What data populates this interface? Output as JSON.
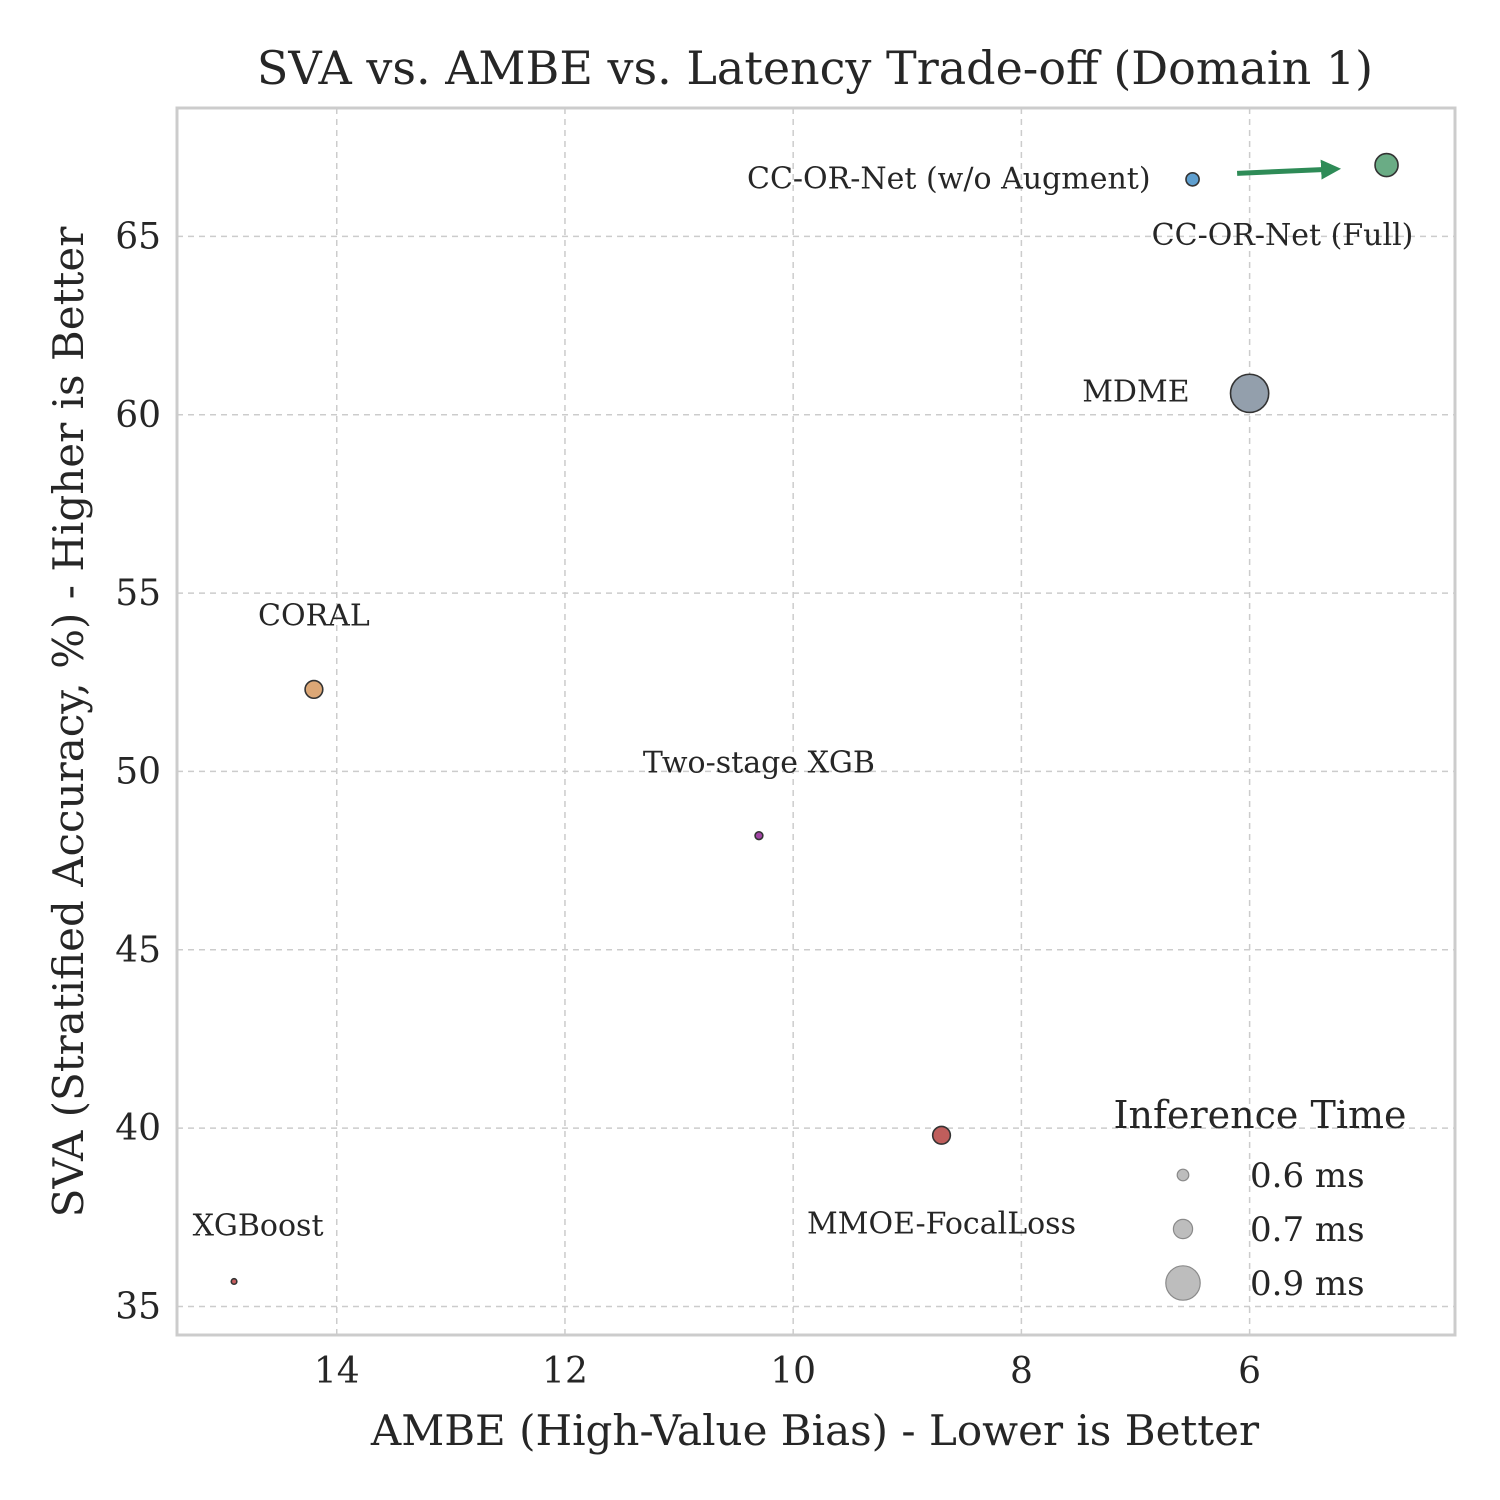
{
  "chart_data": {
    "type": "scatter",
    "title": "SVA vs. AMBE vs. Latency Trade-off (Domain 1)",
    "xlabel": "AMBE (High-Value Bias) - Lower is Better",
    "ylabel": "SVA (Stratified Accuracy, %) - Higher is Better",
    "x_inverted": true,
    "xlim": [
      15.4,
      4.2
    ],
    "ylim": [
      34.2,
      68.6
    ],
    "xticks": [
      14,
      12,
      10,
      8,
      6
    ],
    "yticks": [
      35,
      40,
      45,
      50,
      55,
      60,
      65
    ],
    "grid": true,
    "size_variable": "Inference Time (ms)",
    "points": [
      {
        "name": "CC-OR-Net (Full)",
        "ambe": 4.8,
        "sva": 67.0,
        "inference_ms": 0.75,
        "color": "#6aac85"
      },
      {
        "name": "CC-OR-Net (w/o Augment)",
        "ambe": 6.5,
        "sva": 66.6,
        "inference_ms": 0.62,
        "color": "#5f9fcf"
      },
      {
        "name": "MDME",
        "ambe": 6.0,
        "sva": 60.6,
        "inference_ms": 0.95,
        "color": "#939fac"
      },
      {
        "name": "CORAL",
        "ambe": 14.2,
        "sva": 52.3,
        "inference_ms": 0.68,
        "color": "#dca776"
      },
      {
        "name": "Two-stage XGB",
        "ambe": 10.3,
        "sva": 48.2,
        "inference_ms": 0.55,
        "color": "#a244a5"
      },
      {
        "name": "MMOE-FocalLoss",
        "ambe": 8.7,
        "sva": 39.8,
        "inference_ms": 0.68,
        "color": "#bf5e5c"
      },
      {
        "name": "XGBoost",
        "ambe": 14.9,
        "sva": 35.7,
        "inference_ms": 0.52,
        "color": "#c75d5e"
      }
    ],
    "annotation": {
      "type": "arrow",
      "from": "CC-OR-Net (w/o Augment)",
      "to": "CC-OR-Net (Full)",
      "color": "#2e8b57"
    },
    "legend": {
      "title": "Inference Time",
      "position": "bottom-right",
      "entries": [
        {
          "label": "0.6 ms",
          "value": 0.6
        },
        {
          "label": "0.7 ms",
          "value": 0.7
        },
        {
          "label": "0.9 ms",
          "value": 0.9
        }
      ]
    }
  }
}
